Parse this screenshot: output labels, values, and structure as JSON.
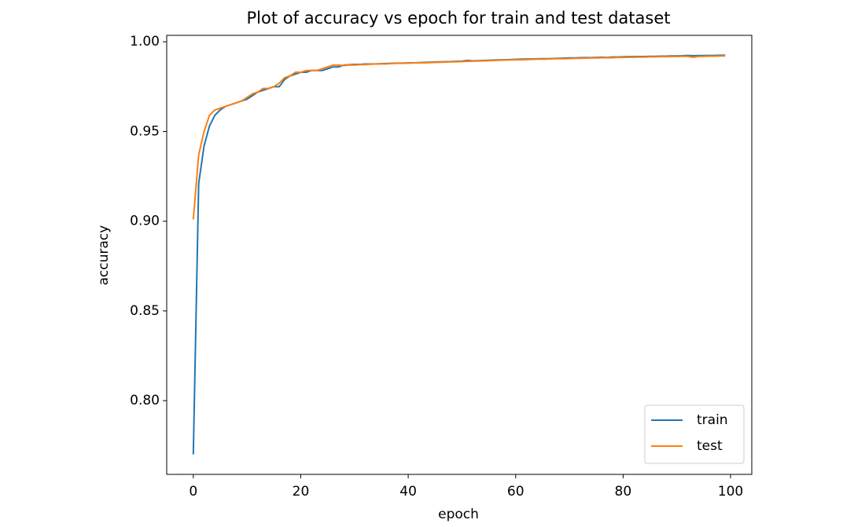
{
  "chart_data": {
    "type": "line",
    "title": "Plot of accuracy vs epoch for train and test dataset",
    "x_label": "epoch",
    "y_label": "accuracy",
    "x": [
      0,
      1,
      2,
      3,
      4,
      5,
      6,
      7,
      8,
      9,
      10,
      11,
      12,
      13,
      14,
      15,
      16,
      17,
      18,
      19,
      20,
      21,
      22,
      23,
      24,
      25,
      26,
      27,
      28,
      29,
      30,
      31,
      32,
      33,
      34,
      35,
      36,
      37,
      38,
      39,
      40,
      41,
      42,
      43,
      44,
      45,
      46,
      47,
      48,
      49,
      50,
      51,
      52,
      53,
      54,
      55,
      56,
      57,
      58,
      59,
      60,
      61,
      62,
      63,
      64,
      65,
      66,
      67,
      68,
      69,
      70,
      71,
      72,
      73,
      74,
      75,
      76,
      77,
      78,
      79,
      80,
      81,
      82,
      83,
      84,
      85,
      86,
      87,
      88,
      89,
      90,
      91,
      92,
      93,
      94,
      95,
      96,
      97,
      98,
      99
    ],
    "series": [
      {
        "name": "train",
        "color": "#1f77b4",
        "values": [
          0.77,
          0.921,
          0.942,
          0.953,
          0.959,
          0.962,
          0.964,
          0.965,
          0.966,
          0.967,
          0.968,
          0.97,
          0.972,
          0.973,
          0.974,
          0.975,
          0.975,
          0.979,
          0.981,
          0.982,
          0.983,
          0.983,
          0.984,
          0.984,
          0.984,
          0.985,
          0.986,
          0.986,
          0.987,
          0.9872,
          0.9874,
          0.9874,
          0.9876,
          0.9876,
          0.9877,
          0.9878,
          0.9879,
          0.988,
          0.9881,
          0.9881,
          0.9883,
          0.9883,
          0.9884,
          0.9885,
          0.9886,
          0.9887,
          0.9888,
          0.9889,
          0.989,
          0.9891,
          0.9892,
          0.9896,
          0.9894,
          0.9895,
          0.9896,
          0.9897,
          0.9898,
          0.9899,
          0.99,
          0.9901,
          0.9902,
          0.9903,
          0.9904,
          0.9904,
          0.9905,
          0.9906,
          0.9906,
          0.9907,
          0.9908,
          0.9909,
          0.991,
          0.991,
          0.9911,
          0.9912,
          0.9912,
          0.9913,
          0.9914,
          0.9913,
          0.9915,
          0.9915,
          0.9916,
          0.9917,
          0.9917,
          0.9918,
          0.9918,
          0.9919,
          0.9919,
          0.992,
          0.992,
          0.9921,
          0.9921,
          0.9922,
          0.9924,
          0.9922,
          0.9923,
          0.9923,
          0.9924,
          0.9924,
          0.9925,
          0.9925
        ]
      },
      {
        "name": "test",
        "color": "#ff7f0e",
        "values": [
          0.901,
          0.937,
          0.95,
          0.959,
          0.962,
          0.963,
          0.964,
          0.965,
          0.966,
          0.967,
          0.969,
          0.971,
          0.972,
          0.974,
          0.974,
          0.975,
          0.977,
          0.98,
          0.981,
          0.983,
          0.983,
          0.984,
          0.984,
          0.984,
          0.985,
          0.986,
          0.987,
          0.987,
          0.9868,
          0.987,
          0.9871,
          0.9873,
          0.9873,
          0.9875,
          0.9876,
          0.9877,
          0.9877,
          0.9879,
          0.988,
          0.988,
          0.9881,
          0.9882,
          0.9883,
          0.9883,
          0.9884,
          0.9885,
          0.9886,
          0.9887,
          0.9888,
          0.9889,
          0.989,
          0.9891,
          0.9892,
          0.9893,
          0.9894,
          0.9895,
          0.9896,
          0.9897,
          0.9898,
          0.9899,
          0.99,
          0.99,
          0.9901,
          0.9902,
          0.9903,
          0.9903,
          0.9904,
          0.9905,
          0.9906,
          0.9906,
          0.9907,
          0.9908,
          0.9908,
          0.9909,
          0.991,
          0.991,
          0.9911,
          0.9912,
          0.9911,
          0.9913,
          0.9913,
          0.9914,
          0.9914,
          0.9915,
          0.9915,
          0.9916,
          0.9916,
          0.9917,
          0.9917,
          0.9918,
          0.9918,
          0.9919,
          0.9919,
          0.9914,
          0.9918,
          0.9919,
          0.992,
          0.992,
          0.9921,
          0.9921
        ]
      }
    ],
    "xlim": [
      -4.95,
      103.95
    ],
    "ylim": [
      0.7589,
      1.0036
    ],
    "xticks": [
      0,
      20,
      40,
      60,
      80,
      100
    ],
    "yticks": [
      {
        "value": 0.8,
        "label": "0.80"
      },
      {
        "value": 0.85,
        "label": "0.85"
      },
      {
        "value": 0.9,
        "label": "0.90"
      },
      {
        "value": 0.95,
        "label": "0.95"
      },
      {
        "value": 1.0,
        "label": "1.00"
      }
    ],
    "legend": "lower right",
    "grid": false
  }
}
